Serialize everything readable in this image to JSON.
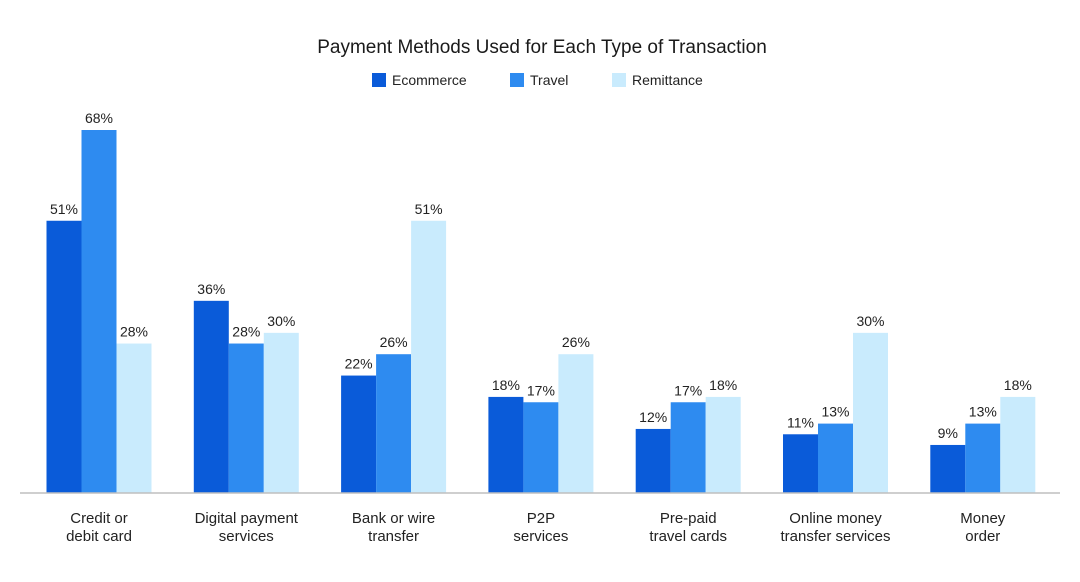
{
  "chart_data": {
    "type": "bar",
    "title": "Payment Methods Used for Each Type of Transaction",
    "categories": [
      [
        "Credit or",
        "debit card"
      ],
      [
        "Digital payment",
        "services"
      ],
      [
        "Bank or wire",
        "transfer"
      ],
      [
        "P2P",
        "services"
      ],
      [
        "Pre-paid",
        "travel cards"
      ],
      [
        "Online money",
        "transfer services"
      ],
      [
        "Money",
        "order"
      ]
    ],
    "series": [
      {
        "name": "Ecommerce",
        "color": "#0A5BD9",
        "values": [
          51,
          36,
          22,
          18,
          12,
          11,
          9
        ]
      },
      {
        "name": "Travel",
        "color": "#2E8BF0",
        "values": [
          68,
          28,
          26,
          17,
          17,
          13,
          13
        ]
      },
      {
        "name": "Remittance",
        "color": "#C9EBFD",
        "values": [
          28,
          30,
          51,
          26,
          18,
          30,
          18
        ]
      }
    ],
    "value_suffix": "%",
    "ylim": [
      0,
      68
    ],
    "xlabel": "",
    "ylabel": "",
    "grid": false,
    "legend_position": "top-center",
    "axis_color": "#BFBFBF"
  }
}
